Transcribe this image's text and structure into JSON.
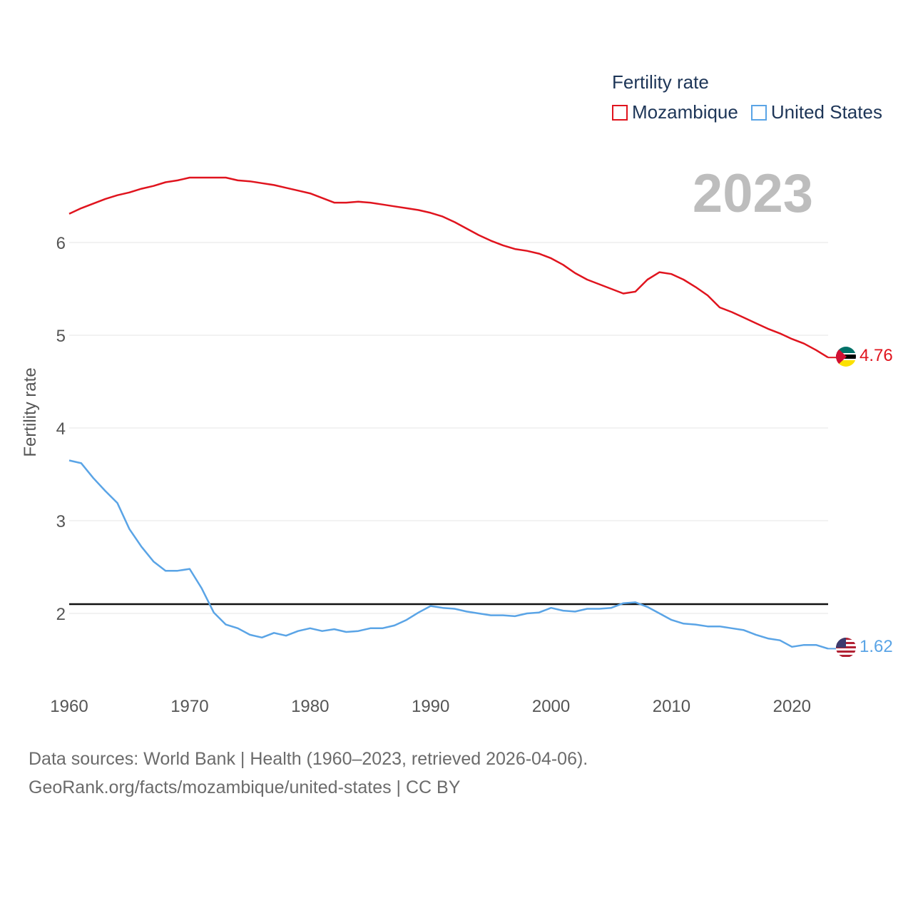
{
  "legend": {
    "title": "Fertility rate",
    "items": [
      {
        "name": "Mozambique",
        "color": "#e0141e"
      },
      {
        "name": "United States",
        "color": "#5aa4e6"
      }
    ]
  },
  "current_year": "2023",
  "footer": {
    "line1": "Data sources: World Bank | Health (1960–2023, retrieved 2026-04-06).",
    "line2": "GeoRank.org/facts/mozambique/united-states | CC BY"
  },
  "end_labels": {
    "mozambique": "4.76",
    "united_states": "1.62"
  },
  "chart_data": {
    "type": "line",
    "title": "Fertility rate",
    "xlabel": "",
    "ylabel": "Fertility rate",
    "xlim": [
      1960,
      2023
    ],
    "ylim": [
      1.3,
      7.0
    ],
    "xticks": [
      1960,
      1970,
      1980,
      1990,
      2000,
      2010,
      2020
    ],
    "yticks": [
      2,
      3,
      4,
      5,
      6
    ],
    "reference_line": 2.1,
    "x": [
      1960,
      1961,
      1962,
      1963,
      1964,
      1965,
      1966,
      1967,
      1968,
      1969,
      1970,
      1971,
      1972,
      1973,
      1974,
      1975,
      1976,
      1977,
      1978,
      1979,
      1980,
      1981,
      1982,
      1983,
      1984,
      1985,
      1986,
      1987,
      1988,
      1989,
      1990,
      1991,
      1992,
      1993,
      1994,
      1995,
      1996,
      1997,
      1998,
      1999,
      2000,
      2001,
      2002,
      2003,
      2004,
      2005,
      2006,
      2007,
      2008,
      2009,
      2010,
      2011,
      2012,
      2013,
      2014,
      2015,
      2016,
      2017,
      2018,
      2019,
      2020,
      2021,
      2022,
      2023
    ],
    "series": [
      {
        "name": "Mozambique",
        "color": "#e0141e",
        "values": [
          6.31,
          6.37,
          6.42,
          6.47,
          6.51,
          6.54,
          6.58,
          6.61,
          6.65,
          6.67,
          6.7,
          6.7,
          6.7,
          6.7,
          6.67,
          6.66,
          6.64,
          6.62,
          6.59,
          6.56,
          6.53,
          6.48,
          6.43,
          6.43,
          6.44,
          6.43,
          6.41,
          6.39,
          6.37,
          6.35,
          6.32,
          6.28,
          6.22,
          6.15,
          6.08,
          6.02,
          5.97,
          5.93,
          5.91,
          5.88,
          5.83,
          5.76,
          5.67,
          5.6,
          5.55,
          5.5,
          5.45,
          5.47,
          5.6,
          5.68,
          5.66,
          5.6,
          5.52,
          5.43,
          5.3,
          5.25,
          5.19,
          5.13,
          5.07,
          5.02,
          4.96,
          4.91,
          4.84,
          4.76
        ]
      },
      {
        "name": "United States",
        "color": "#5aa4e6",
        "values": [
          3.65,
          3.62,
          3.46,
          3.32,
          3.19,
          2.91,
          2.72,
          2.56,
          2.46,
          2.46,
          2.48,
          2.27,
          2.01,
          1.88,
          1.84,
          1.77,
          1.74,
          1.79,
          1.76,
          1.81,
          1.84,
          1.81,
          1.83,
          1.8,
          1.81,
          1.84,
          1.84,
          1.87,
          1.93,
          2.01,
          2.08,
          2.06,
          2.05,
          2.02,
          2.0,
          1.98,
          1.98,
          1.97,
          2.0,
          2.01,
          2.06,
          2.03,
          2.02,
          2.05,
          2.05,
          2.06,
          2.11,
          2.12,
          2.07,
          2.0,
          1.93,
          1.89,
          1.88,
          1.86,
          1.86,
          1.84,
          1.82,
          1.77,
          1.73,
          1.71,
          1.64,
          1.66,
          1.66,
          1.62
        ]
      }
    ]
  }
}
